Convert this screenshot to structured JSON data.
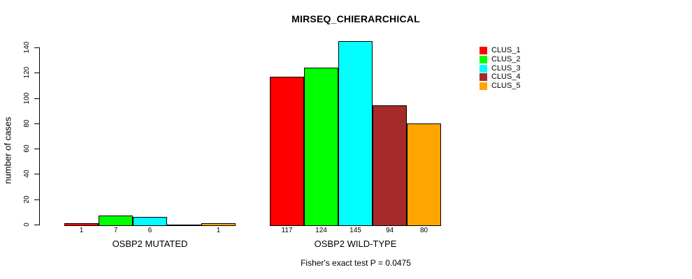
{
  "chart_data": {
    "type": "bar",
    "title": "MIRSEQ_CHIERARCHICAL",
    "ylabel": "number of cases",
    "xlabel": "",
    "yticks": [
      0,
      20,
      40,
      60,
      80,
      100,
      120,
      140
    ],
    "ylim": [
      0,
      140
    ],
    "grid": false,
    "legend_position": "right",
    "categories": [
      "OSBP2 MUTATED",
      "OSBP2 WILD-TYPE"
    ],
    "groups": [
      {
        "label": "OSBP2 MUTATED",
        "values": [
          1,
          7,
          6,
          0,
          1
        ],
        "bar_labels": [
          "1",
          "7",
          "6",
          "",
          "1"
        ]
      },
      {
        "label": "OSBP2 WILD-TYPE",
        "values": [
          117,
          124,
          145,
          94,
          80
        ],
        "bar_labels": [
          "117",
          "124",
          "145",
          "94",
          "80"
        ]
      }
    ],
    "series": [
      {
        "name": "CLUS_1",
        "color": "#FF0000"
      },
      {
        "name": "CLUS_2",
        "color": "#00FF00"
      },
      {
        "name": "CLUS_3",
        "color": "#00FFFF"
      },
      {
        "name": "CLUS_4",
        "color": "#A52A2A"
      },
      {
        "name": "CLUS_5",
        "color": "#FFA500"
      }
    ],
    "annotation": "Fisher's exact test P = 0.0475"
  }
}
